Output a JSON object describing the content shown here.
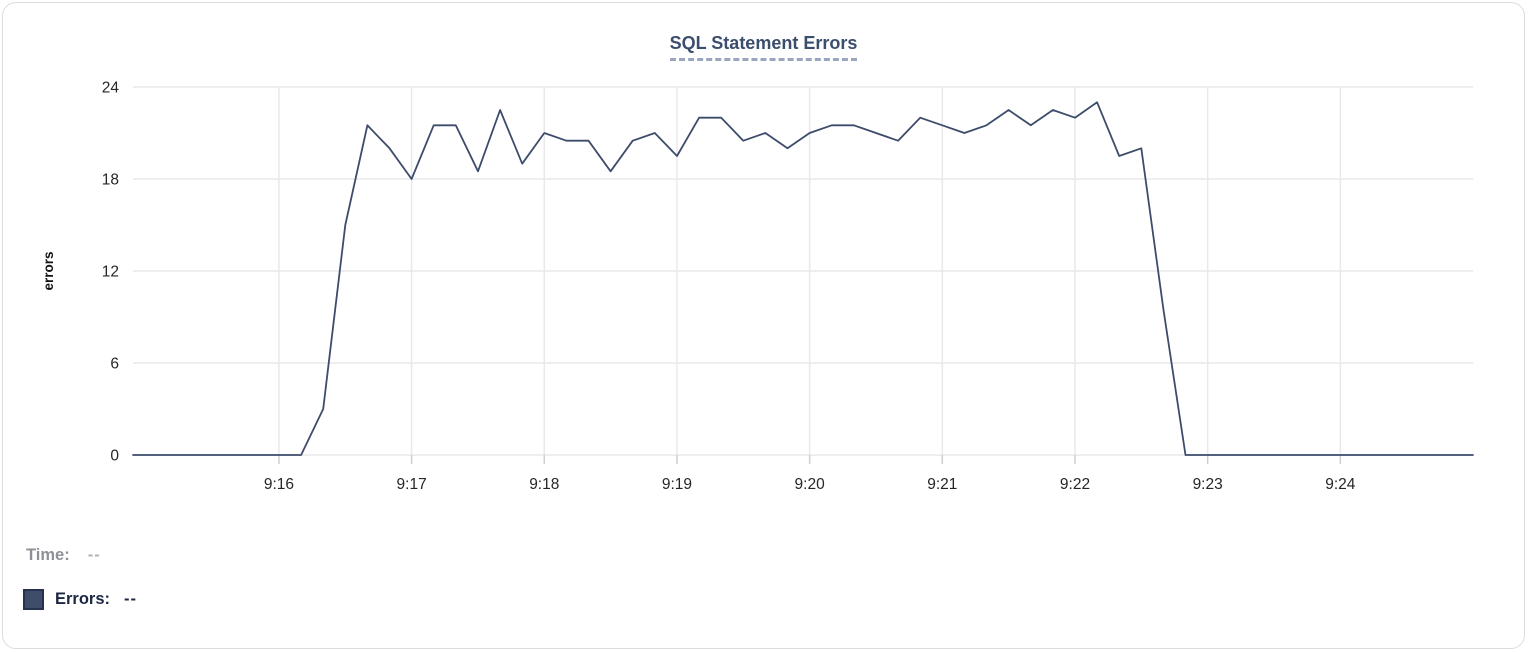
{
  "chart": {
    "title": "SQL Statement Errors"
  },
  "readout": {
    "time_label": "Time:",
    "time_value": "--",
    "errors_label": "Errors:",
    "errors_value": "--"
  },
  "colors": {
    "line": "#3e4c6b",
    "title": "#3c4e6e",
    "title_underline": "#9aa6bf",
    "grid": "#e9e9e9",
    "tick": "#cfcfcf",
    "axis_text": "#262626",
    "axis_label_text": "#111111",
    "time_label": "#8d9197",
    "time_value": "#b0b3b8",
    "errors_text": "#1c2744",
    "swatch_fill": "#3e4d69",
    "swatch_border": "#27324f",
    "card_border": "#dadce0"
  },
  "chart_data": {
    "type": "line",
    "title": "SQL Statement Errors",
    "xlabel": "",
    "ylabel": "errors",
    "ylim": [
      0,
      24
    ],
    "y_ticks": [
      0,
      6,
      12,
      18,
      24
    ],
    "x_ticks": [
      "9:16",
      "9:17",
      "9:18",
      "9:19",
      "9:20",
      "9:21",
      "9:22",
      "9:23",
      "9:24"
    ],
    "x_range": [
      "9:14:54",
      "9:25:00"
    ],
    "grid": true,
    "legend_position": "bottom-left",
    "series": [
      {
        "name": "Errors",
        "points": [
          [
            "9:14:54",
            0
          ],
          [
            "9:15:00",
            0
          ],
          [
            "9:15:10",
            0
          ],
          [
            "9:15:20",
            0
          ],
          [
            "9:15:30",
            0
          ],
          [
            "9:15:40",
            0
          ],
          [
            "9:15:50",
            0
          ],
          [
            "9:16:00",
            0
          ],
          [
            "9:16:10",
            0
          ],
          [
            "9:16:20",
            3
          ],
          [
            "9:16:30",
            15
          ],
          [
            "9:16:40",
            21.5
          ],
          [
            "9:16:50",
            20
          ],
          [
            "9:17:00",
            18
          ],
          [
            "9:17:10",
            21.5
          ],
          [
            "9:17:20",
            21.5
          ],
          [
            "9:17:30",
            18.5
          ],
          [
            "9:17:40",
            22.5
          ],
          [
            "9:17:50",
            19
          ],
          [
            "9:18:00",
            21
          ],
          [
            "9:18:10",
            20.5
          ],
          [
            "9:18:20",
            20.5
          ],
          [
            "9:18:30",
            18.5
          ],
          [
            "9:18:40",
            20.5
          ],
          [
            "9:18:50",
            21
          ],
          [
            "9:19:00",
            19.5
          ],
          [
            "9:19:10",
            22
          ],
          [
            "9:19:20",
            22
          ],
          [
            "9:19:30",
            20.5
          ],
          [
            "9:19:40",
            21
          ],
          [
            "9:19:50",
            20
          ],
          [
            "9:20:00",
            21
          ],
          [
            "9:20:10",
            21.5
          ],
          [
            "9:20:20",
            21.5
          ],
          [
            "9:20:30",
            21
          ],
          [
            "9:20:40",
            20.5
          ],
          [
            "9:20:50",
            22
          ],
          [
            "9:21:00",
            21.5
          ],
          [
            "9:21:10",
            21
          ],
          [
            "9:21:20",
            21.5
          ],
          [
            "9:21:30",
            22.5
          ],
          [
            "9:21:40",
            21.5
          ],
          [
            "9:21:50",
            22.5
          ],
          [
            "9:22:00",
            22
          ],
          [
            "9:22:10",
            23
          ],
          [
            "9:22:20",
            19.5
          ],
          [
            "9:22:30",
            20
          ],
          [
            "9:22:40",
            9.5
          ],
          [
            "9:22:50",
            0
          ],
          [
            "9:23:00",
            0
          ],
          [
            "9:23:10",
            0
          ],
          [
            "9:23:20",
            0
          ],
          [
            "9:23:30",
            0
          ],
          [
            "9:23:40",
            0
          ],
          [
            "9:23:50",
            0
          ],
          [
            "9:24:00",
            0
          ],
          [
            "9:24:10",
            0
          ],
          [
            "9:24:20",
            0
          ],
          [
            "9:24:30",
            0
          ],
          [
            "9:24:40",
            0
          ],
          [
            "9:24:50",
            0
          ],
          [
            "9:25:00",
            0
          ]
        ]
      }
    ]
  }
}
